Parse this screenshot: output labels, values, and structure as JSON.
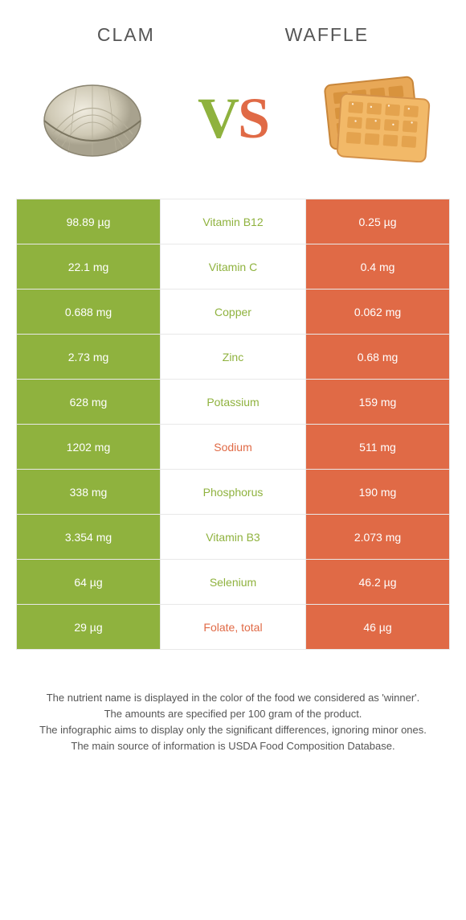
{
  "header": {
    "left": "Clam",
    "right": "Waffle"
  },
  "vs": {
    "v": "V",
    "s": "S"
  },
  "colors": {
    "green": "#8fb23e",
    "orange": "#e06a46",
    "border": "#e8e8e8",
    "text": "#555555"
  },
  "rows": [
    {
      "left": "98.89 µg",
      "label": "Vitamin B12",
      "right": "0.25 µg",
      "winner": "left"
    },
    {
      "left": "22.1 mg",
      "label": "Vitamin C",
      "right": "0.4 mg",
      "winner": "left"
    },
    {
      "left": "0.688 mg",
      "label": "Copper",
      "right": "0.062 mg",
      "winner": "left"
    },
    {
      "left": "2.73 mg",
      "label": "Zinc",
      "right": "0.68 mg",
      "winner": "left"
    },
    {
      "left": "628 mg",
      "label": "Potassium",
      "right": "159 mg",
      "winner": "left"
    },
    {
      "left": "1202 mg",
      "label": "Sodium",
      "right": "511 mg",
      "winner": "right"
    },
    {
      "left": "338 mg",
      "label": "Phosphorus",
      "right": "190 mg",
      "winner": "left"
    },
    {
      "left": "3.354 mg",
      "label": "Vitamin B3",
      "right": "2.073 mg",
      "winner": "left"
    },
    {
      "left": "64 µg",
      "label": "Selenium",
      "right": "46.2 µg",
      "winner": "left"
    },
    {
      "left": "29 µg",
      "label": "Folate, total",
      "right": "46 µg",
      "winner": "right"
    }
  ],
  "footer": {
    "line1": "The nutrient name is displayed in the color of the food we considered as 'winner'.",
    "line2": "The amounts are specified per 100 gram of the product.",
    "line3": "The infographic aims to display only the significant differences, ignoring minor ones.",
    "line4": "The main source of information is USDA Food Composition Database."
  }
}
